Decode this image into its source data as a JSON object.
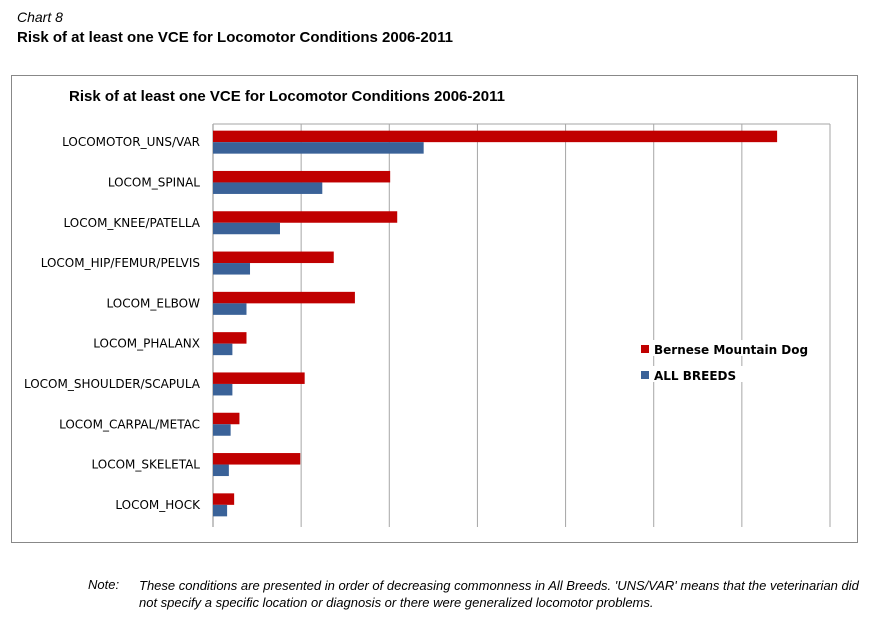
{
  "caption": "Chart 8",
  "heading": "Risk of at least one VCE for Locomotor Conditions 2006-2011",
  "note": {
    "label": "Note:",
    "text": "These conditions are presented in order of decreasing commonness in All Breeds.  'UNS/VAR' means that the veterinarian did not specify a specific location or diagnosis or there were generalized locomotor problems."
  },
  "chart_data": {
    "type": "bar",
    "orientation": "horizontal",
    "title": "Risk of at least one VCE for Locomotor Conditions 2006-2011",
    "xlabel": "",
    "ylabel": "",
    "xlim": [
      0,
      7
    ],
    "x_tick_labels_shown": false,
    "grid": true,
    "legend_position": "right",
    "categories": [
      "LOCOMOTOR_UNS/VAR",
      "LOCOM_SPINAL",
      "LOCOM_KNEE/PATELLA",
      "LOCOM_HIP/FEMUR/PELVIS",
      "LOCOM_ELBOW",
      "LOCOM_PHALANX",
      "LOCOM_SHOULDER/SCAPULA",
      "LOCOM_CARPAL/METAC",
      "LOCOM_SKELETAL",
      "LOCOM_HOCK"
    ],
    "series": [
      {
        "name": "Bernese Mountain Dog",
        "color": "#C00000",
        "values": [
          6.4,
          2.01,
          2.09,
          1.37,
          1.61,
          0.38,
          1.04,
          0.3,
          0.99,
          0.24
        ]
      },
      {
        "name": "ALL BREEDS",
        "color": "#3A6298",
        "values": [
          2.39,
          1.24,
          0.76,
          0.42,
          0.38,
          0.22,
          0.22,
          0.2,
          0.18,
          0.16
        ]
      }
    ]
  }
}
